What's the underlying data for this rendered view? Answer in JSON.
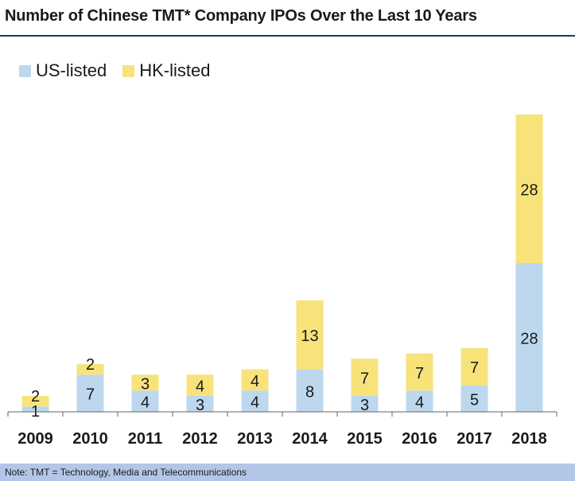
{
  "header": {
    "title": "Number of Chinese TMT* Company IPOs Over the Last 10 Years"
  },
  "footer": {
    "note": "Note: TMT = Technology, Media and Telecommunications"
  },
  "colors": {
    "us": "#bdd7ee",
    "hk": "#f7e37a",
    "axis": "#666666",
    "title_rule": "#1f3864",
    "footer_bg": "#b4c6e7"
  },
  "chart_data": {
    "type": "bar",
    "stacked": true,
    "title": "Number of Chinese TMT* Company IPOs Over the Last 10 Years",
    "categories": [
      "2009",
      "2010",
      "2011",
      "2012",
      "2013",
      "2014",
      "2015",
      "2016",
      "2017",
      "2018"
    ],
    "series": [
      {
        "name": "US-listed",
        "values": [
          1,
          7,
          4,
          3,
          4,
          8,
          3,
          4,
          5,
          28
        ]
      },
      {
        "name": "HK-listed",
        "values": [
          2,
          2,
          3,
          4,
          4,
          13,
          7,
          7,
          7,
          28
        ]
      }
    ],
    "ylim": [
      0,
      56
    ],
    "grid": false,
    "legend_position": "top-left"
  }
}
